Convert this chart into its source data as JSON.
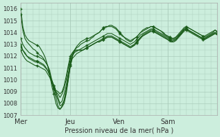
{
  "background_color": "#cceedd",
  "grid_color": "#aaccbb",
  "line_color": "#1a5c1a",
  "marker_color": "#1a5c1a",
  "xlabel": "Pression niveau de la mer( hPa )",
  "ylim": [
    1007,
    1016.5
  ],
  "yticks": [
    1007,
    1008,
    1009,
    1010,
    1011,
    1012,
    1013,
    1014,
    1015,
    1016
  ],
  "xtick_labels": [
    "Mer",
    "Jeu",
    "Ven",
    "Sam"
  ],
  "xtick_positions": [
    0,
    48,
    96,
    144
  ],
  "xlim": [
    0,
    192
  ],
  "vline_positions": [
    0,
    48,
    96,
    144
  ],
  "series": [
    [
      1016.0,
      1014.5,
      1013.8,
      1013.5,
      1013.3,
      1013.2,
      1013.1,
      1013.0,
      1012.9,
      1012.8,
      1012.5,
      1012.2,
      1011.8,
      1011.2,
      1010.5,
      1009.8,
      1009.2,
      1008.5,
      1007.8,
      1007.5,
      1007.8,
      1008.2,
      1009.0,
      1010.0,
      1011.2,
      1012.0,
      1012.5,
      1012.8,
      1013.0,
      1013.2,
      1013.3,
      1013.4,
      1013.5,
      1013.5,
      1013.6,
      1013.7,
      1013.8,
      1013.9,
      1014.0,
      1014.2,
      1014.4,
      1014.5,
      1014.5,
      1014.6,
      1014.6,
      1014.5,
      1014.4,
      1014.2,
      1014.0,
      1013.8,
      1013.6,
      1013.5,
      1013.4,
      1013.3,
      1013.4,
      1013.5,
      1013.6,
      1013.8,
      1014.0,
      1014.2,
      1014.3,
      1014.4,
      1014.4,
      1014.5,
      1014.5,
      1014.4,
      1014.3,
      1014.2,
      1014.1,
      1014.0,
      1013.8,
      1013.7,
      1013.6,
      1013.5,
      1013.5,
      1013.6,
      1013.7,
      1013.9,
      1014.1,
      1014.3,
      1014.4,
      1014.4,
      1014.3,
      1014.2,
      1014.1,
      1014.0,
      1013.9,
      1013.8,
      1013.7,
      1013.7,
      1013.8,
      1013.9,
      1014.0,
      1014.1,
      1014.2,
      1014.1
    ],
    [
      1015.5,
      1014.2,
      1013.5,
      1013.2,
      1013.0,
      1012.8,
      1012.6,
      1012.5,
      1012.3,
      1012.1,
      1012.0,
      1011.8,
      1011.5,
      1011.2,
      1010.5,
      1009.5,
      1008.8,
      1008.0,
      1007.6,
      1007.5,
      1007.7,
      1008.0,
      1008.8,
      1010.0,
      1011.2,
      1012.0,
      1012.5,
      1012.7,
      1012.8,
      1013.0,
      1013.1,
      1013.2,
      1013.3,
      1013.3,
      1013.5,
      1013.6,
      1013.8,
      1013.9,
      1014.0,
      1014.2,
      1014.3,
      1014.4,
      1014.5,
      1014.5,
      1014.5,
      1014.4,
      1014.3,
      1014.1,
      1013.9,
      1013.7,
      1013.6,
      1013.4,
      1013.3,
      1013.2,
      1013.3,
      1013.5,
      1013.6,
      1013.8,
      1014.0,
      1014.1,
      1014.2,
      1014.3,
      1014.4,
      1014.5,
      1014.5,
      1014.4,
      1014.3,
      1014.2,
      1014.1,
      1013.9,
      1013.8,
      1013.7,
      1013.6,
      1013.5,
      1013.5,
      1013.6,
      1013.8,
      1014.0,
      1014.2,
      1014.4,
      1014.5,
      1014.4,
      1014.3,
      1014.2,
      1014.1,
      1014.0,
      1013.9,
      1013.8,
      1013.7,
      1013.6,
      1013.7,
      1013.8,
      1013.9,
      1014.0,
      1014.2,
      1014.0
    ],
    [
      1013.5,
      1013.0,
      1012.7,
      1012.5,
      1012.3,
      1012.2,
      1012.1,
      1012.0,
      1012.0,
      1011.9,
      1011.8,
      1011.7,
      1011.5,
      1011.2,
      1010.8,
      1010.0,
      1009.5,
      1009.0,
      1008.5,
      1008.0,
      1008.2,
      1008.8,
      1009.5,
      1010.5,
      1011.5,
      1012.0,
      1012.3,
      1012.4,
      1012.5,
      1012.6,
      1012.7,
      1012.8,
      1012.9,
      1013.0,
      1013.1,
      1013.2,
      1013.3,
      1013.4,
      1013.5,
      1013.6,
      1013.7,
      1013.8,
      1013.9,
      1013.9,
      1013.9,
      1013.8,
      1013.7,
      1013.6,
      1013.5,
      1013.4,
      1013.3,
      1013.2,
      1013.1,
      1013.0,
      1013.1,
      1013.2,
      1013.4,
      1013.6,
      1013.8,
      1013.9,
      1014.0,
      1014.1,
      1014.2,
      1014.3,
      1014.3,
      1014.2,
      1014.1,
      1014.0,
      1013.9,
      1013.8,
      1013.7,
      1013.6,
      1013.5,
      1013.4,
      1013.4,
      1013.5,
      1013.6,
      1013.8,
      1014.0,
      1014.2,
      1014.3,
      1014.2,
      1014.1,
      1014.0,
      1013.9,
      1013.8,
      1013.7,
      1013.6,
      1013.5,
      1013.5,
      1013.6,
      1013.7,
      1013.8,
      1013.9,
      1014.0,
      1013.9
    ],
    [
      1013.0,
      1012.5,
      1012.2,
      1012.0,
      1011.9,
      1011.8,
      1011.7,
      1011.6,
      1011.6,
      1011.5,
      1011.4,
      1011.3,
      1011.1,
      1010.8,
      1010.4,
      1009.8,
      1009.3,
      1008.8,
      1008.3,
      1007.8,
      1007.9,
      1008.3,
      1009.2,
      1010.3,
      1011.3,
      1011.8,
      1012.0,
      1012.2,
      1012.3,
      1012.4,
      1012.5,
      1012.6,
      1012.7,
      1012.8,
      1012.9,
      1013.0,
      1013.1,
      1013.2,
      1013.3,
      1013.4,
      1013.5,
      1013.6,
      1013.7,
      1013.7,
      1013.7,
      1013.6,
      1013.5,
      1013.4,
      1013.3,
      1013.2,
      1013.1,
      1013.0,
      1012.9,
      1012.8,
      1012.9,
      1013.0,
      1013.2,
      1013.4,
      1013.6,
      1013.8,
      1013.9,
      1014.0,
      1014.1,
      1014.2,
      1014.2,
      1014.1,
      1014.0,
      1013.9,
      1013.8,
      1013.7,
      1013.6,
      1013.5,
      1013.4,
      1013.3,
      1013.3,
      1013.4,
      1013.6,
      1013.8,
      1014.0,
      1014.2,
      1014.3,
      1014.2,
      1014.1,
      1014.0,
      1013.9,
      1013.8,
      1013.7,
      1013.6,
      1013.5,
      1013.4,
      1013.5,
      1013.6,
      1013.7,
      1013.8,
      1013.9,
      1013.8
    ],
    [
      1012.5,
      1012.1,
      1011.8,
      1011.6,
      1011.5,
      1011.4,
      1011.3,
      1011.2,
      1011.2,
      1011.1,
      1011.0,
      1010.9,
      1010.8,
      1010.5,
      1010.2,
      1009.8,
      1009.3,
      1009.0,
      1008.8,
      1008.5,
      1008.8,
      1009.3,
      1010.0,
      1011.0,
      1011.8,
      1012.2,
      1012.4,
      1012.5,
      1012.5,
      1012.5,
      1012.5,
      1012.6,
      1012.7,
      1012.8,
      1012.9,
      1013.0,
      1013.1,
      1013.2,
      1013.2,
      1013.3,
      1013.4,
      1013.5,
      1013.6,
      1013.6,
      1013.6,
      1013.5,
      1013.4,
      1013.3,
      1013.2,
      1013.1,
      1013.0,
      1012.9,
      1012.8,
      1012.7,
      1012.8,
      1012.9,
      1013.1,
      1013.3,
      1013.5,
      1013.7,
      1013.8,
      1013.9,
      1014.0,
      1014.1,
      1014.1,
      1014.0,
      1013.9,
      1013.8,
      1013.7,
      1013.6,
      1013.5,
      1013.4,
      1013.3,
      1013.2,
      1013.2,
      1013.3,
      1013.5,
      1013.7,
      1013.9,
      1014.1,
      1014.2,
      1014.1,
      1014.0,
      1013.9,
      1013.8,
      1013.7,
      1013.6,
      1013.5,
      1013.4,
      1013.4,
      1013.5,
      1013.6,
      1013.7,
      1013.8,
      1013.9,
      1013.8
    ],
    [
      1012.8,
      1012.5,
      1012.3,
      1012.0,
      1011.8,
      1011.7,
      1011.6,
      1011.5,
      1011.5,
      1011.4,
      1011.3,
      1011.2,
      1011.0,
      1010.8,
      1010.4,
      1010.0,
      1009.5,
      1009.1,
      1009.0,
      1008.8,
      1009.0,
      1009.5,
      1010.3,
      1011.2,
      1012.0,
      1012.3,
      1012.5,
      1012.5,
      1012.5,
      1012.5,
      1012.5,
      1012.6,
      1012.7,
      1012.8,
      1012.9,
      1013.0,
      1013.1,
      1013.2,
      1013.2,
      1013.3,
      1013.4,
      1013.5,
      1013.6,
      1013.6,
      1013.6,
      1013.5,
      1013.4,
      1013.3,
      1013.2,
      1013.1,
      1013.0,
      1012.9,
      1012.8,
      1012.7,
      1012.8,
      1013.0,
      1013.2,
      1013.4,
      1013.6,
      1013.7,
      1013.8,
      1013.9,
      1014.0,
      1014.1,
      1014.1,
      1014.0,
      1013.9,
      1013.8,
      1013.7,
      1013.6,
      1013.5,
      1013.4,
      1013.3,
      1013.2,
      1013.3,
      1013.4,
      1013.6,
      1013.8,
      1014.0,
      1014.2,
      1014.3,
      1014.2,
      1014.1,
      1014.0,
      1013.9,
      1013.8,
      1013.7,
      1013.6,
      1013.5,
      1013.5,
      1013.6,
      1013.7,
      1013.8,
      1013.9,
      1014.0,
      1013.9
    ]
  ]
}
